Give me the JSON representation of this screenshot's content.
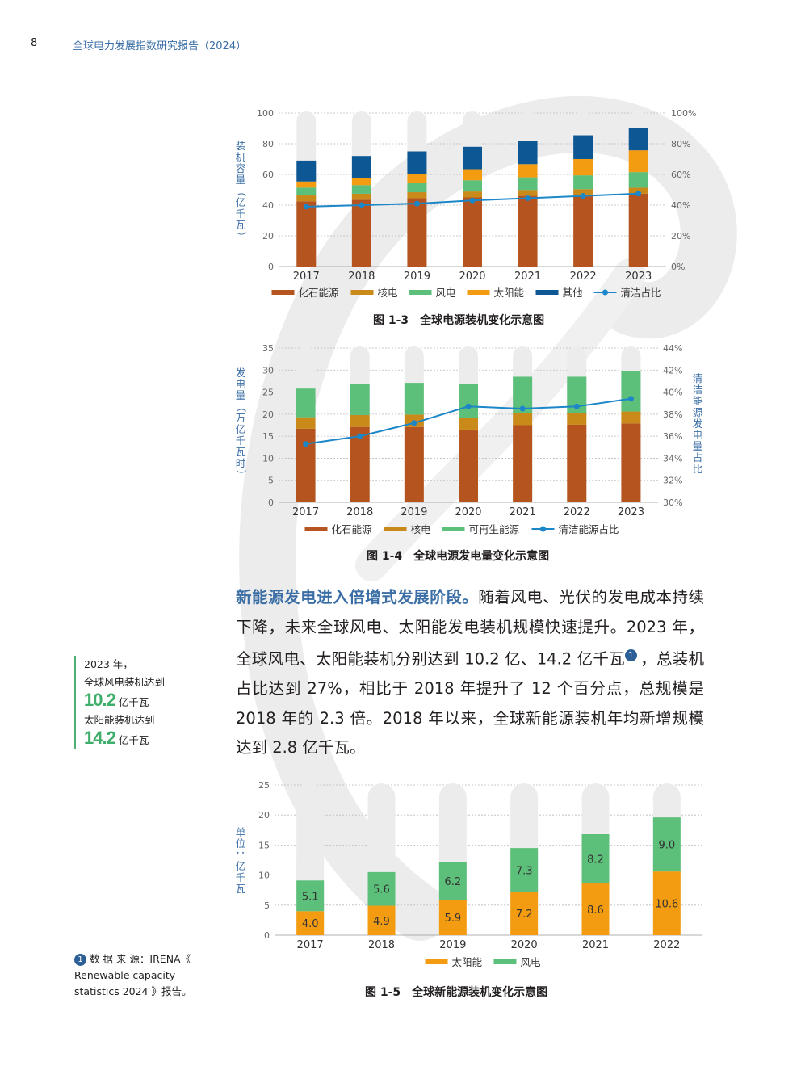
{
  "header": {
    "page_number": "8",
    "title": "全球电力发展指数研究报告（2024）"
  },
  "chart_data": [
    {
      "type": "bar",
      "caption": "图 1-3　全球电源装机变化示意图",
      "categories": [
        "2017",
        "2018",
        "2019",
        "2020",
        "2021",
        "2022",
        "2023"
      ],
      "ylabel": "装机容量（亿千瓦）",
      "ylim": [
        0,
        100
      ],
      "yticks": [
        "0",
        "20",
        "40",
        "60",
        "80",
        "100"
      ],
      "y2ticks": [
        "0%",
        "20%",
        "40%",
        "60%",
        "80%",
        "100%"
      ],
      "stacked": true,
      "series": [
        {
          "name": "化石能源",
          "color": "#b5541f",
          "values": [
            42.5,
            43.5,
            44.5,
            45,
            46,
            46.5,
            47.5
          ]
        },
        {
          "name": "核电",
          "color": "#c98a1a",
          "values": [
            3.8,
            3.9,
            3.9,
            3.9,
            3.9,
            3.9,
            3.8
          ]
        },
        {
          "name": "风电",
          "color": "#5cbf7a",
          "values": [
            5.1,
            5.6,
            6.2,
            7.3,
            8.2,
            9.0,
            10.2
          ]
        },
        {
          "name": "太阳能",
          "color": "#f39c12",
          "values": [
            4.0,
            4.9,
            5.9,
            7.2,
            8.6,
            10.6,
            14.2
          ]
        },
        {
          "name": "其他",
          "color": "#0c5794",
          "values": [
            13.6,
            14.1,
            14.5,
            14.6,
            15,
            15.5,
            14.3
          ]
        }
      ],
      "line": {
        "name": "清洁占比",
        "color": "#1b86c8",
        "values": [
          39,
          40,
          41,
          43,
          44.5,
          46,
          47.5
        ]
      }
    },
    {
      "type": "bar",
      "caption": "图 1-4　全球电源发电量变化示意图",
      "categories": [
        "2017",
        "2018",
        "2019",
        "2020",
        "2021",
        "2022",
        "2023"
      ],
      "ylabel": "发电量（万亿千瓦时）",
      "y2label": "清洁能源发电量占比",
      "ylim": [
        0,
        35
      ],
      "y2lim": [
        30,
        44
      ],
      "yticks": [
        "0",
        "5",
        "10",
        "15",
        "20",
        "25",
        "30",
        "35"
      ],
      "y2ticks": [
        "30%",
        "32%",
        "34%",
        "36%",
        "38%",
        "40%",
        "42%",
        "44%"
      ],
      "stacked": true,
      "series": [
        {
          "name": "化石能源",
          "color": "#b5541f",
          "values": [
            16.7,
            17.1,
            17.1,
            16.5,
            17.5,
            17.6,
            17.9
          ]
        },
        {
          "name": "核电",
          "color": "#c98a1a",
          "values": [
            2.6,
            2.7,
            2.8,
            2.7,
            2.8,
            2.6,
            2.7
          ]
        },
        {
          "name": "可再生能源",
          "color": "#5cbf7a",
          "values": [
            6.5,
            7.0,
            7.2,
            7.6,
            8.2,
            8.3,
            9.1
          ]
        }
      ],
      "line": {
        "name": "清洁能源占比",
        "color": "#1b86c8",
        "values": [
          35.3,
          36.0,
          37.2,
          38.7,
          38.5,
          38.7,
          39.4
        ]
      }
    },
    {
      "type": "bar",
      "caption": "图 1-5　全球新能源装机变化示意图",
      "categories": [
        "2017",
        "2018",
        "2019",
        "2020",
        "2021",
        "2022"
      ],
      "ylabel": "单位：亿千瓦",
      "ylim": [
        0,
        25
      ],
      "yticks": [
        "0",
        "5",
        "10",
        "15",
        "20",
        "25"
      ],
      "stacked": true,
      "series": [
        {
          "name": "太阳能",
          "color": "#f39c12",
          "values": [
            4.0,
            4.9,
            5.9,
            7.2,
            8.6,
            10.6
          ],
          "labels": [
            "4.0",
            "4.9",
            "5.9",
            "7.2",
            "8.6",
            "10.6"
          ]
        },
        {
          "name": "风电",
          "color": "#5cbf7a",
          "values": [
            5.1,
            5.6,
            6.2,
            7.3,
            8.2,
            9.0
          ],
          "labels": [
            "5.1",
            "5.6",
            "6.2",
            "7.3",
            "8.2",
            "9.0"
          ]
        }
      ]
    }
  ],
  "body": {
    "lead": "新能源发电进入倍增式发展阶段。",
    "text1": "随着风电、光伏的发电成本持续下降，未来全球风电、太阳能发电装机规模快速提升。2023 年，全球风电、太阳能装机分别达到 10.2 亿、14.2 亿千瓦",
    "note_mark": "1",
    "text2": "，总装机占比达到 27%，相比于 2018 年提升了 12 个百分点，总规模是 2018 年的 2.3 倍。2018 年以来，全球新能源装机年均新增规模达到 2.8 亿千瓦。"
  },
  "sidenote": {
    "line1": "2023 年，",
    "line2": "全球风电装机达到",
    "value1": "10.2",
    "unit1": "亿千瓦",
    "line3": "太阳能装机达到",
    "value2": "14.2",
    "unit2": "亿千瓦"
  },
  "footnote": {
    "mark": "1",
    "text": "数 据 来 源：IRENA《 Renewable capacity statistics 2024 》报告。"
  },
  "colors": {
    "accent_blue": "#3a6ea5",
    "accent_green": "#3fae6a"
  }
}
